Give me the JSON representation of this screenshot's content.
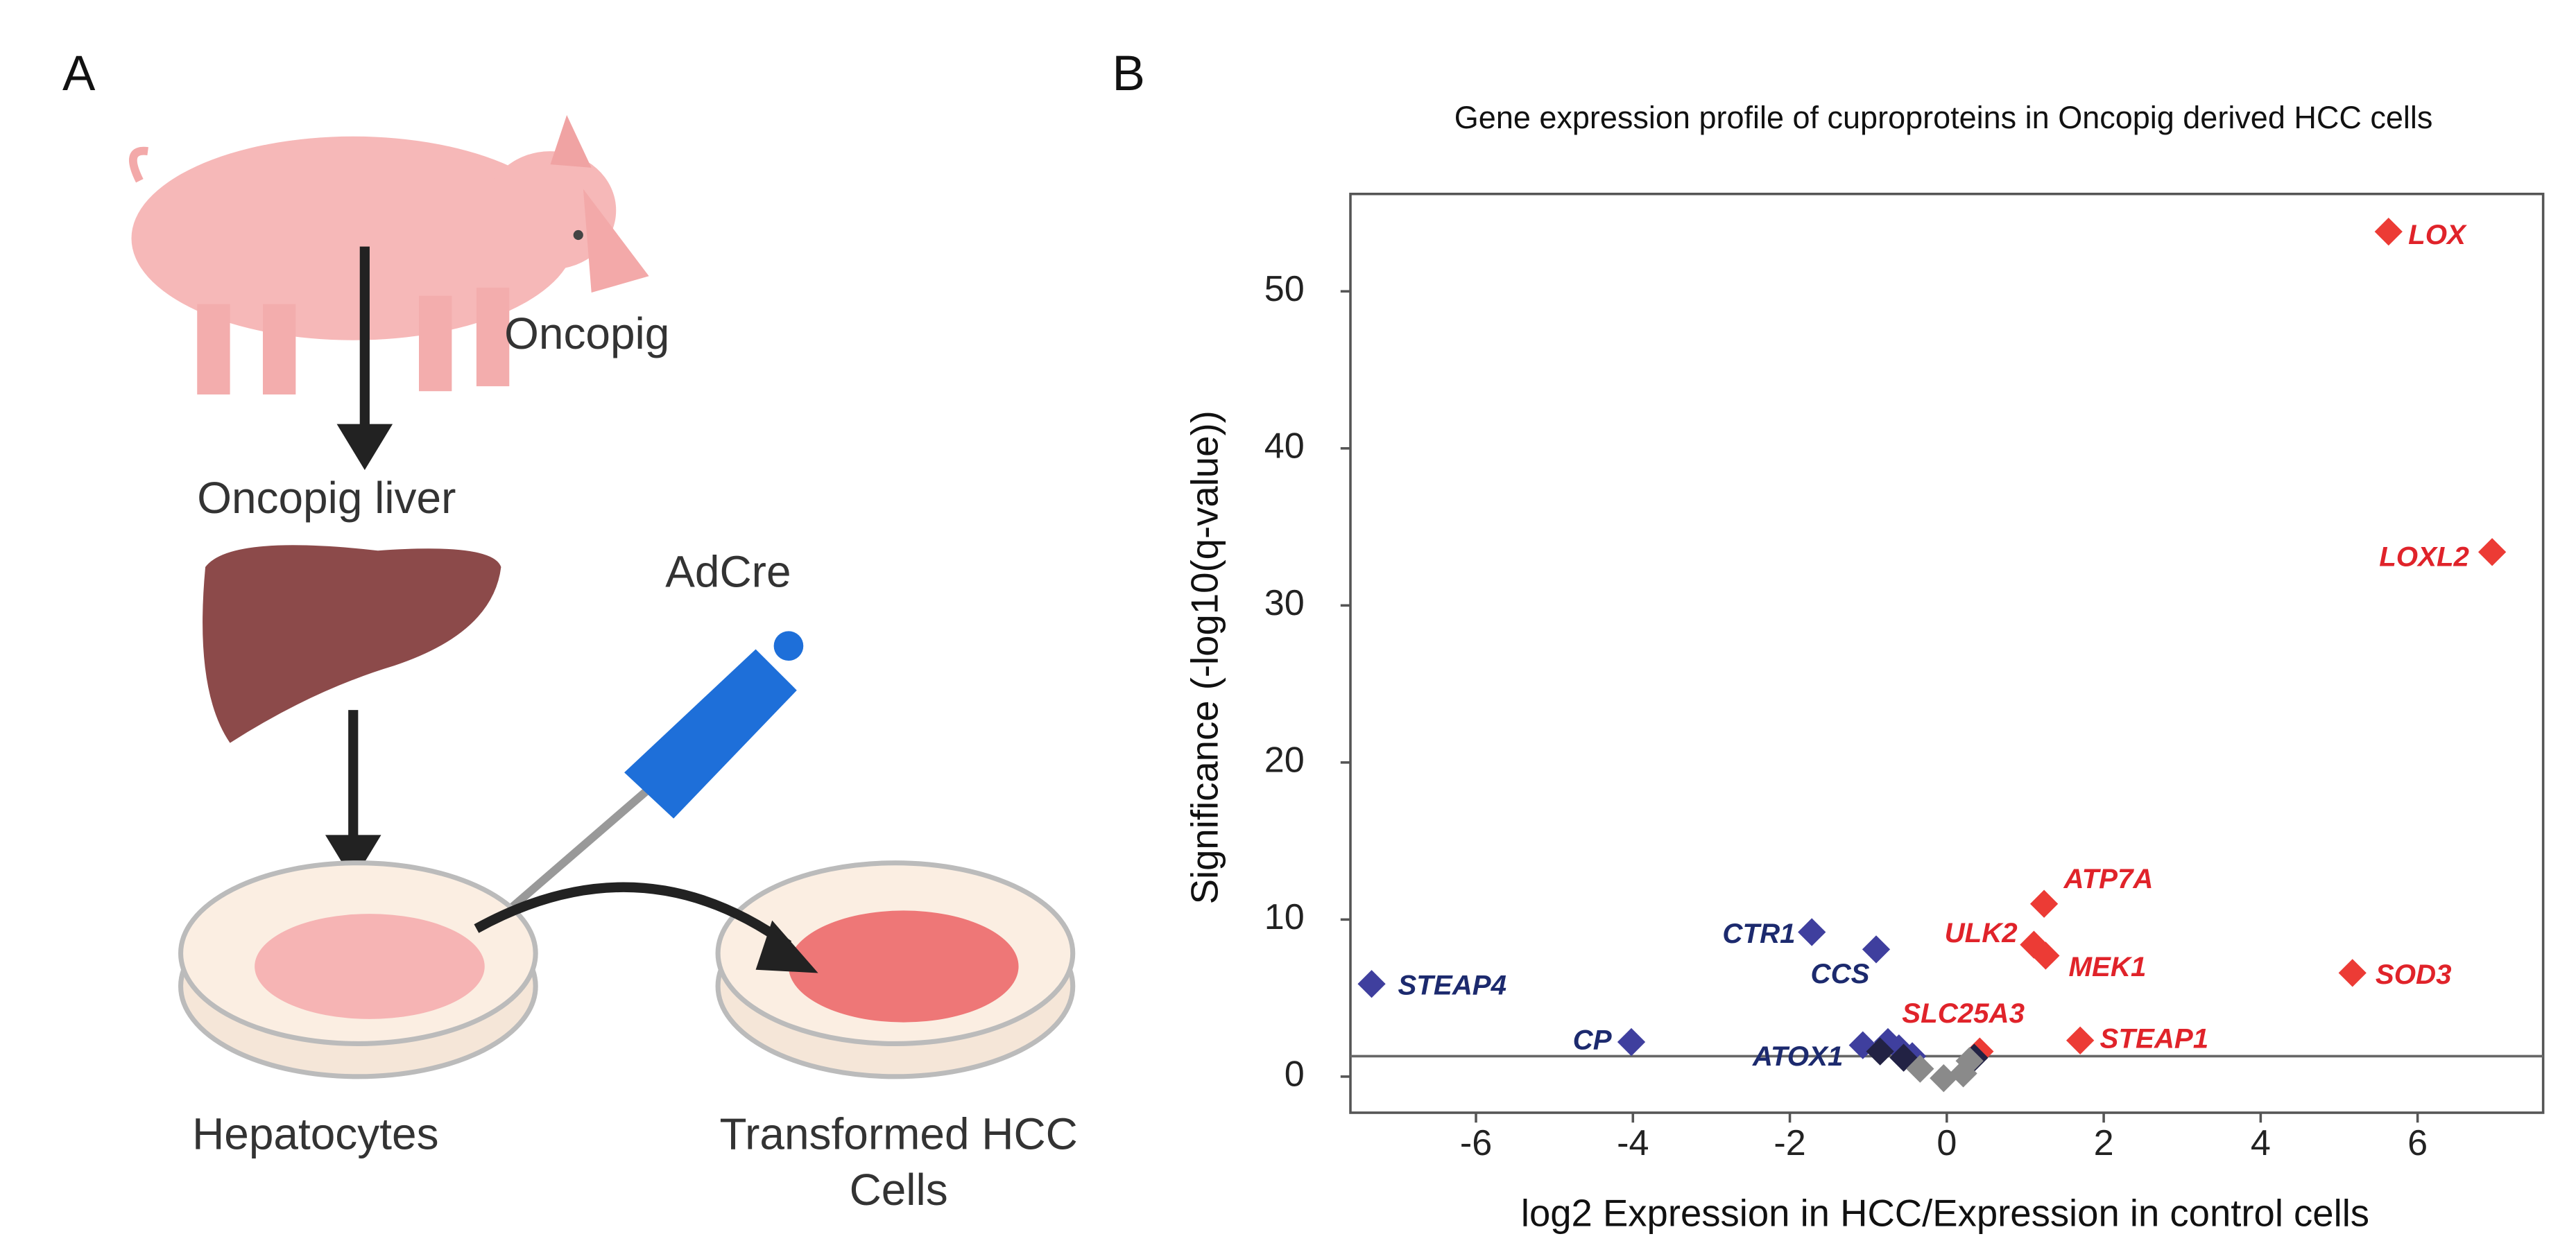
{
  "panel_a": {
    "letter": "A",
    "labels": {
      "oncopig": "Oncopig",
      "liver": "Oncopig liver",
      "adcre": "AdCre",
      "hepatocytes": "Hepatocytes",
      "transformed": [
        "Transformed HCC",
        "Cells"
      ]
    }
  },
  "chart_data": {
    "type": "scatter",
    "panel": "B",
    "title": "Gene expression profile of cuproproteins in Oncopig derived HCC cells",
    "xlabel": "log2 Expression in HCC/Expression in control cells",
    "ylabel": "Significance (-log10(q-value))",
    "xlim": [
      -7.6,
      7.6
    ],
    "ylim": [
      -2.3,
      56.2
    ],
    "xticks": [
      -6,
      -4,
      -2,
      0,
      2,
      4,
      6
    ],
    "yticks": [
      0,
      10,
      20,
      30,
      40,
      50
    ],
    "hline": 1.3,
    "grid": false,
    "series": [
      {
        "color": "#ec3b35",
        "label_color": "#e0232a",
        "x": [
          5.63,
          6.95,
          1.24,
          1.11,
          1.26,
          5.17,
          1.7,
          0.42
        ],
        "values": [
          53.8,
          33.4,
          11.0,
          8.4,
          7.7,
          6.6,
          2.3,
          1.6
        ],
        "labels": [
          "LOX",
          "LOXL2",
          "ATP7A",
          "ULK2",
          "MEK1",
          "SOD3",
          "STEAP1",
          "SLC25A3"
        ]
      },
      {
        "color": "#3f3f9e",
        "label_color": "#1c2a6e",
        "x": [
          -7.33,
          -1.72,
          -0.9,
          -4.02,
          -1.07,
          -0.75,
          -0.61,
          -0.44
        ],
        "values": [
          5.9,
          9.2,
          8.1,
          2.2,
          2.0,
          2.2,
          1.8,
          1.3
        ],
        "labels": [
          "STEAP4",
          "CTR1",
          "CCS",
          "CP",
          "ATOX1",
          null,
          null,
          null
        ]
      },
      {
        "color": "#222244",
        "label_color": "#222244",
        "x": [
          -0.85,
          -0.55,
          0.35
        ],
        "values": [
          1.6,
          1.2,
          1.2
        ],
        "labels": [
          null,
          null,
          null
        ]
      },
      {
        "color": "#8a8a8a",
        "label_color": "#8a8a8a",
        "x": [
          -0.34,
          -0.04,
          0.21,
          0.29
        ],
        "values": [
          0.5,
          -0.1,
          0.2,
          1.0
        ],
        "labels": [
          null,
          null,
          null,
          null
        ]
      }
    ]
  }
}
